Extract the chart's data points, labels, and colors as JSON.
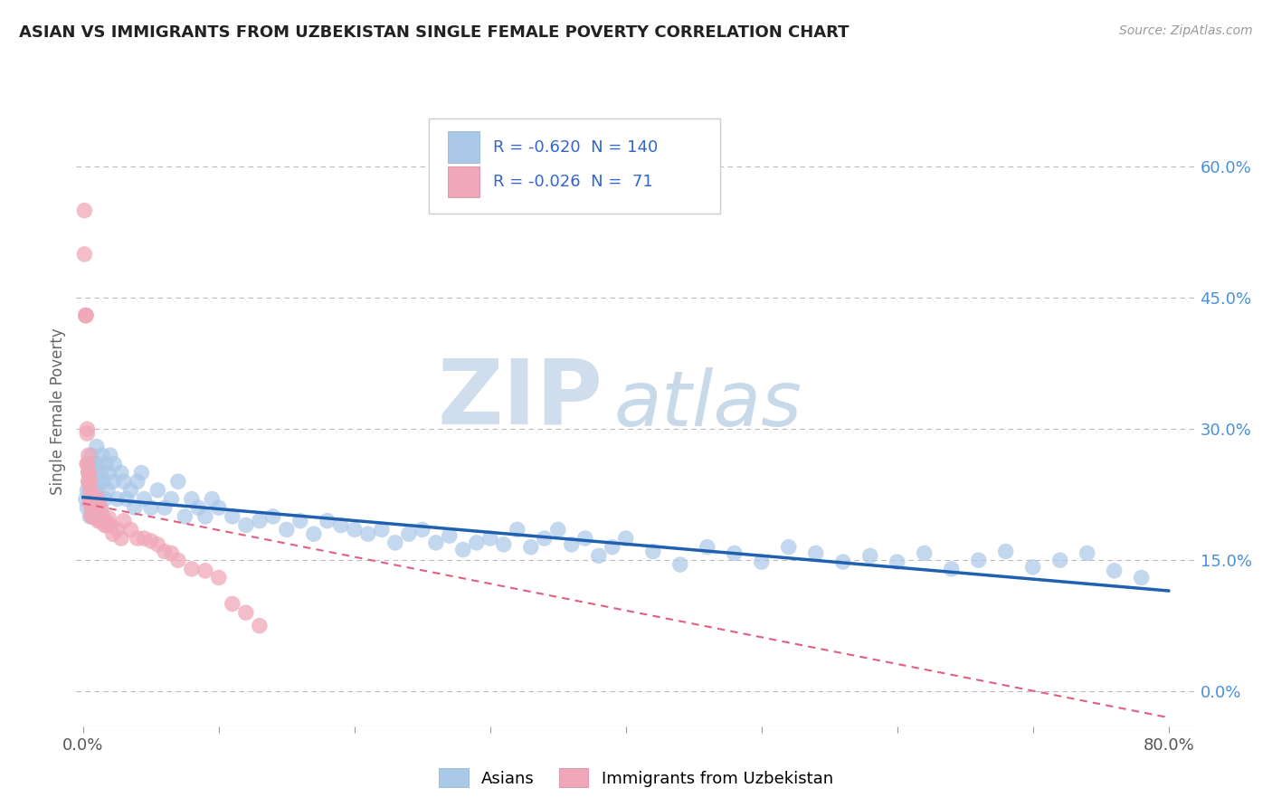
{
  "title": "ASIAN VS IMMIGRANTS FROM UZBEKISTAN SINGLE FEMALE POVERTY CORRELATION CHART",
  "source": "Source: ZipAtlas.com",
  "ylabel": "Single Female Poverty",
  "xlim": [
    -0.005,
    0.82
  ],
  "ylim": [
    -0.04,
    0.68
  ],
  "right_yticks": [
    0.0,
    0.15,
    0.3,
    0.45,
    0.6
  ],
  "right_yticklabels": [
    "0.0%",
    "15.0%",
    "30.0%",
    "45.0%",
    "60.0%"
  ],
  "xticks": [
    0.0,
    0.8
  ],
  "xticklabels": [
    "0.0%",
    "80.0%"
  ],
  "legend_R": [
    -0.62,
    -0.026
  ],
  "legend_N": [
    140,
    71
  ],
  "blue_color": "#aac8e8",
  "blue_line_color": "#2060b0",
  "pink_color": "#f0a8b8",
  "pink_line_color": "#e06080",
  "watermark_ZIP": "ZIP",
  "watermark_atlas": "atlas",
  "blue_trend_x": [
    0.0,
    0.8
  ],
  "blue_trend_y": [
    0.222,
    0.115
  ],
  "pink_trend_x": [
    0.0,
    0.8
  ],
  "pink_trend_y": [
    0.215,
    -0.03
  ],
  "blue_scatter_x": [
    0.002,
    0.003,
    0.003,
    0.004,
    0.005,
    0.005,
    0.006,
    0.006,
    0.007,
    0.007,
    0.008,
    0.008,
    0.009,
    0.009,
    0.01,
    0.01,
    0.01,
    0.011,
    0.011,
    0.012,
    0.013,
    0.013,
    0.014,
    0.015,
    0.016,
    0.017,
    0.018,
    0.019,
    0.02,
    0.022,
    0.023,
    0.025,
    0.028,
    0.03,
    0.032,
    0.035,
    0.038,
    0.04,
    0.043,
    0.045,
    0.05,
    0.055,
    0.06,
    0.065,
    0.07,
    0.075,
    0.08,
    0.085,
    0.09,
    0.095,
    0.1,
    0.11,
    0.12,
    0.13,
    0.14,
    0.15,
    0.16,
    0.17,
    0.18,
    0.19,
    0.2,
    0.21,
    0.22,
    0.23,
    0.24,
    0.25,
    0.26,
    0.27,
    0.28,
    0.29,
    0.3,
    0.31,
    0.32,
    0.33,
    0.34,
    0.35,
    0.36,
    0.37,
    0.38,
    0.39,
    0.4,
    0.42,
    0.44,
    0.46,
    0.48,
    0.5,
    0.52,
    0.54,
    0.56,
    0.58,
    0.6,
    0.62,
    0.64,
    0.66,
    0.68,
    0.7,
    0.72,
    0.74,
    0.76,
    0.78
  ],
  "blue_scatter_y": [
    0.22,
    0.23,
    0.21,
    0.24,
    0.26,
    0.2,
    0.27,
    0.22,
    0.21,
    0.23,
    0.26,
    0.2,
    0.25,
    0.22,
    0.28,
    0.23,
    0.2,
    0.26,
    0.24,
    0.22,
    0.25,
    0.21,
    0.27,
    0.24,
    0.22,
    0.26,
    0.23,
    0.25,
    0.27,
    0.24,
    0.26,
    0.22,
    0.25,
    0.24,
    0.22,
    0.23,
    0.21,
    0.24,
    0.25,
    0.22,
    0.21,
    0.23,
    0.21,
    0.22,
    0.24,
    0.2,
    0.22,
    0.21,
    0.2,
    0.22,
    0.21,
    0.2,
    0.19,
    0.195,
    0.2,
    0.185,
    0.195,
    0.18,
    0.195,
    0.19,
    0.185,
    0.18,
    0.185,
    0.17,
    0.18,
    0.185,
    0.17,
    0.178,
    0.162,
    0.17,
    0.175,
    0.168,
    0.185,
    0.165,
    0.175,
    0.185,
    0.168,
    0.175,
    0.155,
    0.165,
    0.175,
    0.16,
    0.145,
    0.165,
    0.158,
    0.148,
    0.165,
    0.158,
    0.148,
    0.155,
    0.148,
    0.158,
    0.14,
    0.15,
    0.16,
    0.142,
    0.15,
    0.158,
    0.138,
    0.13
  ],
  "pink_scatter_x": [
    0.001,
    0.001,
    0.002,
    0.002,
    0.002,
    0.003,
    0.003,
    0.003,
    0.003,
    0.004,
    0.004,
    0.004,
    0.004,
    0.004,
    0.005,
    0.005,
    0.005,
    0.005,
    0.005,
    0.005,
    0.006,
    0.006,
    0.006,
    0.006,
    0.006,
    0.007,
    0.007,
    0.007,
    0.007,
    0.008,
    0.008,
    0.008,
    0.008,
    0.009,
    0.009,
    0.009,
    0.01,
    0.01,
    0.01,
    0.01,
    0.011,
    0.011,
    0.012,
    0.012,
    0.013,
    0.013,
    0.014,
    0.015,
    0.016,
    0.017,
    0.018,
    0.019,
    0.02,
    0.022,
    0.025,
    0.028,
    0.03,
    0.035,
    0.04,
    0.045,
    0.05,
    0.055,
    0.06,
    0.065,
    0.07,
    0.08,
    0.09,
    0.1,
    0.11,
    0.12,
    0.13
  ],
  "pink_scatter_y": [
    0.55,
    0.5,
    0.43,
    0.43,
    0.43,
    0.3,
    0.26,
    0.26,
    0.295,
    0.27,
    0.25,
    0.25,
    0.25,
    0.24,
    0.24,
    0.235,
    0.23,
    0.22,
    0.22,
    0.215,
    0.22,
    0.22,
    0.215,
    0.21,
    0.2,
    0.22,
    0.22,
    0.215,
    0.2,
    0.21,
    0.208,
    0.205,
    0.21,
    0.21,
    0.205,
    0.2,
    0.222,
    0.218,
    0.2,
    0.21,
    0.205,
    0.195,
    0.215,
    0.2,
    0.208,
    0.195,
    0.2,
    0.198,
    0.19,
    0.19,
    0.192,
    0.198,
    0.19,
    0.18,
    0.185,
    0.175,
    0.195,
    0.185,
    0.175,
    0.175,
    0.172,
    0.168,
    0.16,
    0.158,
    0.15,
    0.14,
    0.138,
    0.13,
    0.1,
    0.09,
    0.075
  ]
}
